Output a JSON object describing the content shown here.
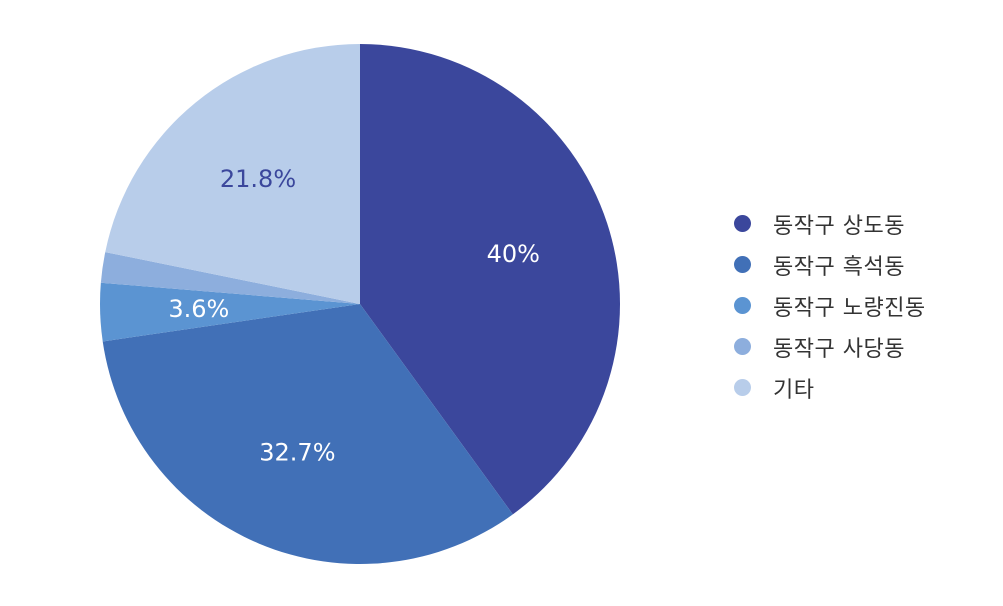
{
  "chart_data": {
    "type": "pie",
    "categories": [
      "동작구 상도동",
      "동작구 흑석동",
      "동작구 노량진동",
      "동작구 사당동",
      "기타"
    ],
    "values": [
      40,
      32.7,
      3.6,
      1.9,
      21.8
    ],
    "data_labels": [
      "40%",
      "32.7%",
      "3.6%",
      "",
      "21.8%"
    ],
    "colors": [
      "#3b479c",
      "#4170b7",
      "#5b94d2",
      "#8daedd",
      "#b8cdea"
    ],
    "label_colors": [
      "#ffffff",
      "#ffffff",
      "#ffffff",
      "#ffffff",
      "#3b479c"
    ],
    "legend_position": "right",
    "start_angle": "12 o'clock",
    "direction": "clockwise"
  }
}
